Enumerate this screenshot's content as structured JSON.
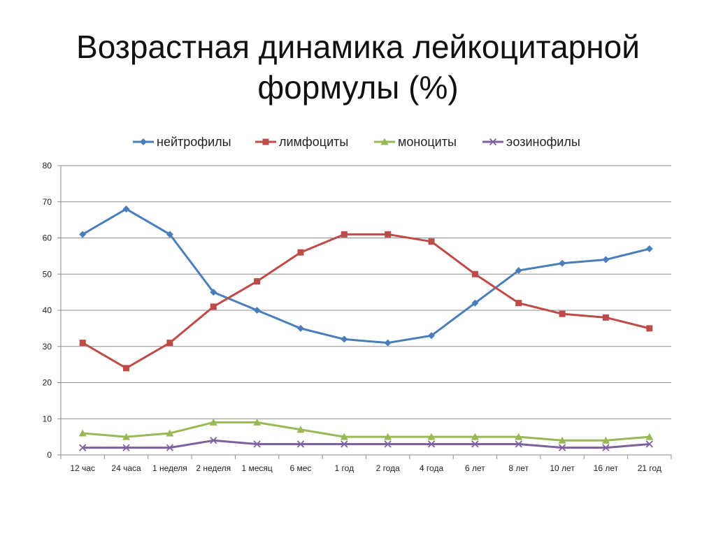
{
  "title_lines": [
    "Возрастная динамика лейкоцитарной",
    "формулы (%)"
  ],
  "chart_data": {
    "type": "line",
    "categories": [
      "12 час",
      "24 часа",
      "1 неделя",
      "2 неделя",
      "1 месяц",
      "6 мес",
      "1 год",
      "2 года",
      "4 года",
      "6 лет",
      "8 лет",
      "10 лет",
      "16 лет",
      "21 год"
    ],
    "ylim": [
      0,
      80
    ],
    "yticks": [
      0,
      10,
      20,
      30,
      40,
      50,
      60,
      70,
      80
    ],
    "grid": true,
    "legend_position": "top",
    "series": [
      {
        "name": "нейтрофилы",
        "color": "#4a7ebb",
        "marker": "diamond",
        "values": [
          61,
          68,
          61,
          45,
          40,
          35,
          32,
          31,
          33,
          42,
          51,
          53,
          54,
          57
        ]
      },
      {
        "name": "лимфоциты",
        "color": "#be4b48",
        "marker": "square",
        "values": [
          31,
          24,
          31,
          41,
          48,
          56,
          61,
          61,
          59,
          50,
          42,
          39,
          38,
          35
        ]
      },
      {
        "name": "моноциты",
        "color": "#98b954",
        "marker": "triangle",
        "values": [
          6,
          5,
          6,
          9,
          9,
          7,
          5,
          5,
          5,
          5,
          5,
          4,
          4,
          5
        ]
      },
      {
        "name": "эозинофилы",
        "color": "#7d60a0",
        "marker": "x",
        "values": [
          2,
          2,
          2,
          4,
          3,
          3,
          3,
          3,
          3,
          3,
          3,
          2,
          2,
          3
        ]
      }
    ]
  }
}
